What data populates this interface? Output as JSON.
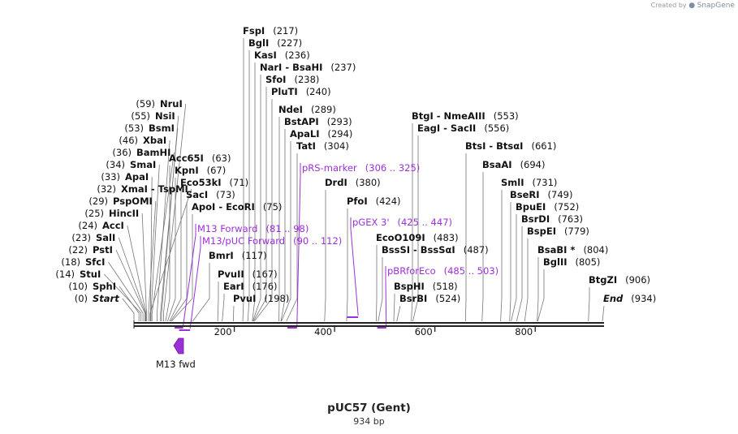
{
  "credit": {
    "prefix": "Created by",
    "brand": "SnapGene"
  },
  "plasmid": {
    "name": "pUC57 (Gent)",
    "length_label": "934 bp",
    "length": 934
  },
  "colors": {
    "feature": "#9b30d9",
    "text": "#111111",
    "line": "#555555"
  },
  "left_sites": [
    {
      "name": "Start",
      "pos": "(0)",
      "bp": 0,
      "italic": true
    },
    {
      "name": "SphI",
      "pos": "(10)",
      "bp": 10
    },
    {
      "name": "StuI",
      "pos": "(14)",
      "bp": 14
    },
    {
      "name": "SfcI",
      "pos": "(18)",
      "bp": 18
    },
    {
      "name": "PstI",
      "pos": "(22)",
      "bp": 22
    },
    {
      "name": "SalI",
      "pos": "(23)",
      "bp": 23
    },
    {
      "name": "AccI",
      "pos": "(24)",
      "bp": 24
    },
    {
      "name": "HincII",
      "pos": "(25)",
      "bp": 25
    },
    {
      "name": "PspOMI",
      "pos": "(29)",
      "bp": 29
    },
    {
      "name": "XmaI  - TspMI",
      "pos": "(32)",
      "bp": 32
    },
    {
      "name": "ApaI",
      "pos": "(33)",
      "bp": 33
    },
    {
      "name": "SmaI",
      "pos": "(34)",
      "bp": 34
    },
    {
      "name": "BamHI",
      "pos": "(36)",
      "bp": 36
    },
    {
      "name": "XbaI",
      "pos": "(46)",
      "bp": 46
    },
    {
      "name": "BsmI",
      "pos": "(53)",
      "bp": 53
    },
    {
      "name": "NsiI",
      "pos": "(55)",
      "bp": 55
    },
    {
      "name": "NruI",
      "pos": "(59)",
      "bp": 59
    }
  ],
  "right_sites": [
    {
      "name": "Acc65I",
      "pos": "(63)",
      "bp": 63
    },
    {
      "name": "KpnI",
      "pos": "(67)",
      "bp": 67
    },
    {
      "name": "Eco53kI",
      "pos": "(71)",
      "bp": 71
    },
    {
      "name": "SacI",
      "pos": "(73)",
      "bp": 73
    },
    {
      "name": "ApoI  - EcoRI",
      "pos": "(75)",
      "bp": 75
    },
    {
      "name": "BmrI",
      "pos": "(117)",
      "bp": 117
    },
    {
      "name": "PvuII",
      "pos": "(167)",
      "bp": 167
    },
    {
      "name": "EarI",
      "pos": "(176)",
      "bp": 176
    },
    {
      "name": "PvuI",
      "pos": "(198)",
      "bp": 198
    },
    {
      "name": "FspI",
      "pos": "(217)",
      "bp": 217
    },
    {
      "name": "BglI",
      "pos": "(227)",
      "bp": 227
    },
    {
      "name": "KasI",
      "pos": "(236)",
      "bp": 236
    },
    {
      "name": "NarI  - BsaHI",
      "pos": "(237)",
      "bp": 237
    },
    {
      "name": "SfoI",
      "pos": "(238)",
      "bp": 238
    },
    {
      "name": "PluTI",
      "pos": "(240)",
      "bp": 240
    },
    {
      "name": "NdeI",
      "pos": "(289)",
      "bp": 289
    },
    {
      "name": "BstAPI",
      "pos": "(293)",
      "bp": 293
    },
    {
      "name": "ApaLI",
      "pos": "(294)",
      "bp": 294
    },
    {
      "name": "TatI",
      "pos": "(304)",
      "bp": 304
    },
    {
      "name": "DrdI",
      "pos": "(380)",
      "bp": 380
    },
    {
      "name": "PfoI",
      "pos": "(424)",
      "bp": 424
    },
    {
      "name": "EcoO109I",
      "pos": "(483)",
      "bp": 483
    },
    {
      "name": "BssSI  - BssSαI",
      "pos": "(487)",
      "bp": 487
    },
    {
      "name": "BspHI",
      "pos": "(518)",
      "bp": 518
    },
    {
      "name": "BsrBI",
      "pos": "(524)",
      "bp": 524
    },
    {
      "name": "BtgI  - NmeAIII",
      "pos": "(553)",
      "bp": 553
    },
    {
      "name": "EagI  - SacII",
      "pos": "(556)",
      "bp": 556
    },
    {
      "name": "BtsI  - BtsαI",
      "pos": "(661)",
      "bp": 661
    },
    {
      "name": "BsaAI",
      "pos": "(694)",
      "bp": 694
    },
    {
      "name": "SmlI",
      "pos": "(731)",
      "bp": 731
    },
    {
      "name": "BseRI",
      "pos": "(749)",
      "bp": 749
    },
    {
      "name": "BpuEI",
      "pos": "(752)",
      "bp": 752
    },
    {
      "name": "BsrDI",
      "pos": "(763)",
      "bp": 763
    },
    {
      "name": "BspEI",
      "pos": "(779)",
      "bp": 779
    },
    {
      "name": "BsaBI *",
      "pos": "(804)",
      "bp": 804
    },
    {
      "name": "BglII",
      "pos": "(805)",
      "bp": 805
    },
    {
      "name": "BtgZI",
      "pos": "(906)",
      "bp": 906
    },
    {
      "name": "End",
      "pos": "(934)",
      "bp": 934,
      "italic": true
    }
  ],
  "features": [
    {
      "name": "pRS-marker",
      "range": "(306 .. 325)",
      "start": 306,
      "end": 325
    },
    {
      "name": "pGEX 3'",
      "range": "(425 .. 447)",
      "start": 425,
      "end": 447
    },
    {
      "name": "pBRforEco",
      "range": "(485 .. 503)",
      "start": 485,
      "end": 503
    },
    {
      "name": "M13 Forward",
      "range": "(81 .. 98)",
      "start": 81,
      "end": 98
    },
    {
      "name": "M13/pUC Forward",
      "range": "(90 .. 112)",
      "start": 90,
      "end": 112
    }
  ],
  "ticks": [
    {
      "label": "200",
      "bp": 200
    },
    {
      "label": "400",
      "bp": 400
    },
    {
      "label": "600",
      "bp": 600
    },
    {
      "label": "800",
      "bp": 800
    }
  ],
  "primer": {
    "name": "M13 fwd"
  }
}
